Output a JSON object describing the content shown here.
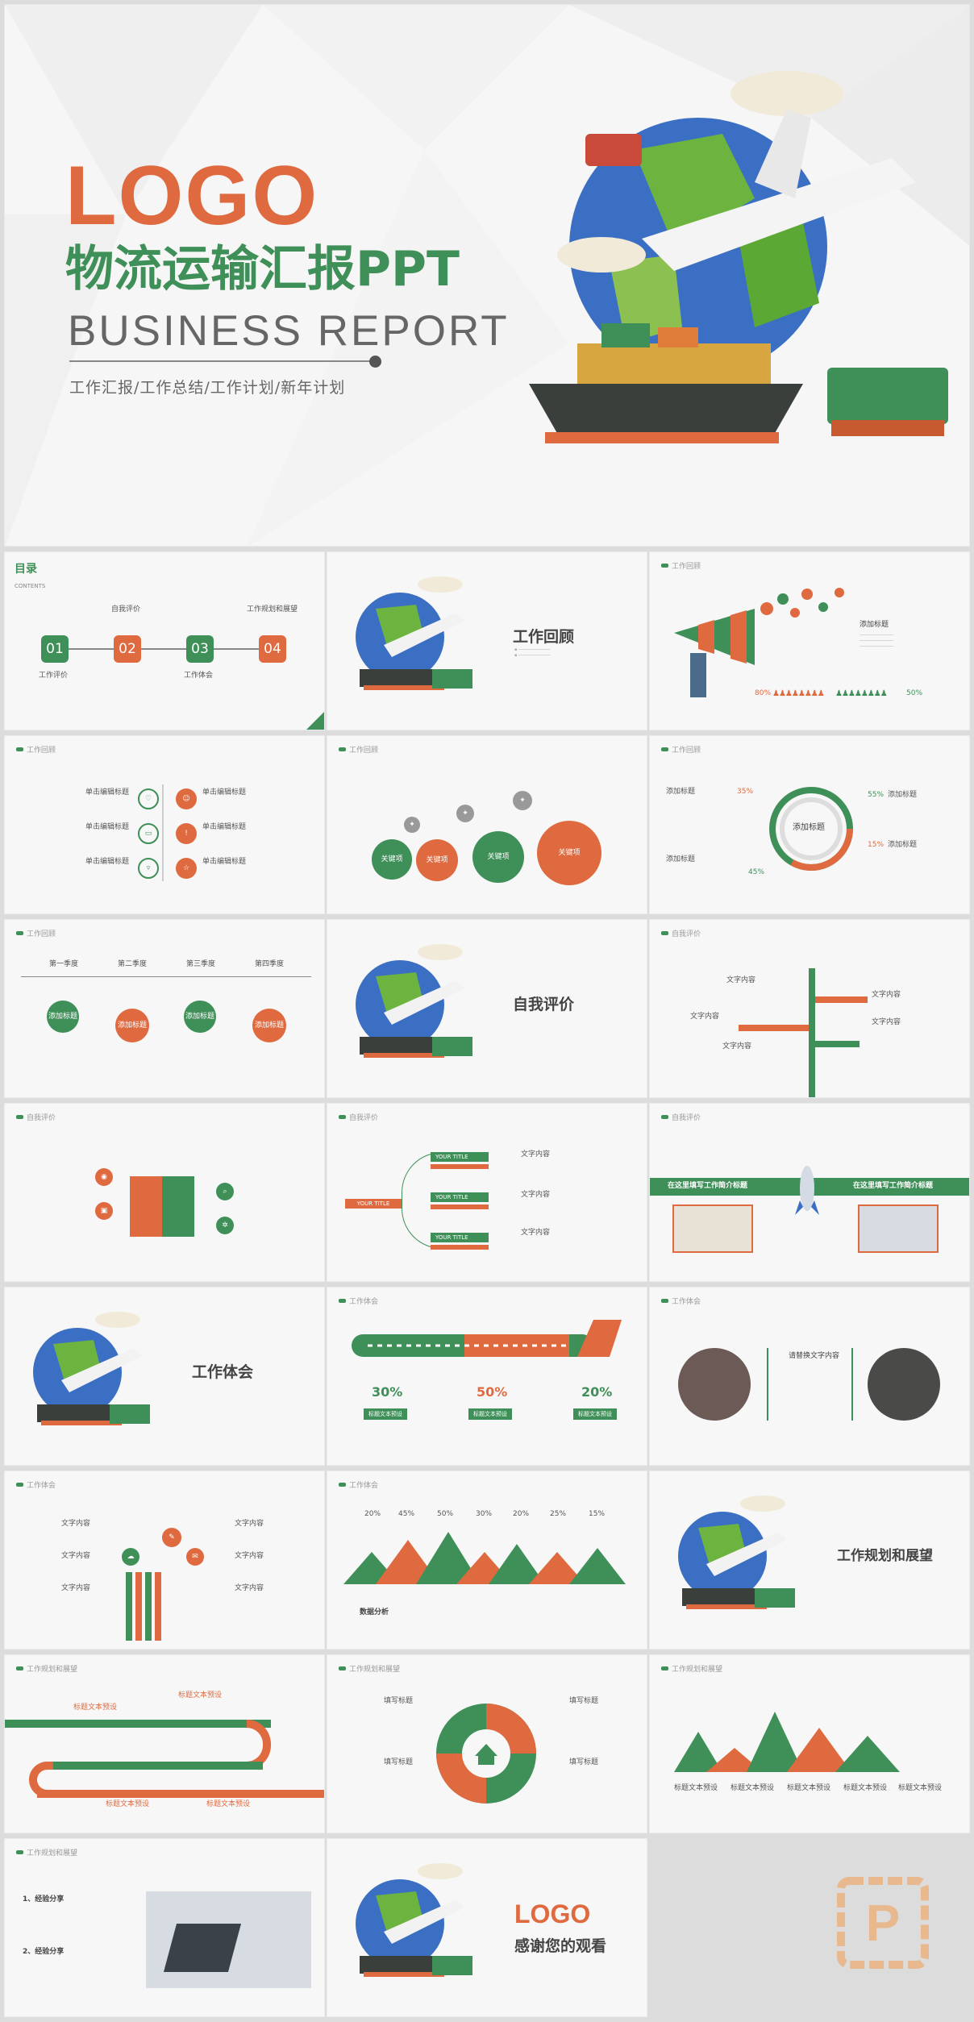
{
  "colors": {
    "green": "#3f8f58",
    "orange": "#df6a3f",
    "text": "#555555",
    "bg": "#f6f6f6"
  },
  "cover": {
    "logo": "LOGO",
    "title": "物流运输汇报PPT",
    "subtitle": "BUSINESS REPORT",
    "tags": "工作汇报/工作总结/工作计划/新年计划"
  },
  "toc": {
    "heading": "目录",
    "heading_en": "CONTENTS",
    "items": [
      {
        "num": "01",
        "label": "工作评价"
      },
      {
        "num": "02",
        "label": "自我评价"
      },
      {
        "num": "03",
        "label": "工作体会"
      },
      {
        "num": "04",
        "label": "工作规划和展望"
      }
    ]
  },
  "section_titles": {
    "s1": "工作回顾",
    "s2": "自我评价",
    "s3": "工作体会",
    "s4": "工作规划和展望"
  },
  "headers": {
    "review": "工作回顾",
    "self": "自我评价",
    "experience": "工作体会",
    "plan": "工作规划和展望"
  },
  "slide3": {
    "label": "添加标题",
    "left_pct": "80%",
    "right_pct": "50%"
  },
  "slide4": {
    "items": [
      "单击编辑标题",
      "单击编辑标题",
      "单击编辑标题",
      "单击编辑标题",
      "单击编辑标题",
      "单击编辑标题"
    ]
  },
  "slide5": {
    "circles": [
      "关键项",
      "关键项",
      "关键项",
      "关键项"
    ]
  },
  "slide6": {
    "center": "添加标题",
    "labels": [
      "添加标题",
      "添加标题",
      "添加标题",
      "添加标题"
    ],
    "pcts": [
      "35%",
      "55%",
      "15%",
      "45%"
    ]
  },
  "slide7": {
    "quarters": [
      "第一季度",
      "第二季度",
      "第三季度",
      "第四季度"
    ],
    "nodes": [
      "添加标题",
      "添加标题",
      "添加标题",
      "添加标题"
    ]
  },
  "slide9": {
    "labels": [
      "文字内容",
      "文字内容",
      "文字内容",
      "文字内容",
      "文字内容"
    ]
  },
  "slide11": {
    "main": "YOUR TITLE",
    "bars": [
      "YOUR TITLE",
      "YOUR TITLE",
      "YOUR TITLE"
    ],
    "labels": [
      "文字内容",
      "文字内容",
      "文字内容"
    ]
  },
  "slide12": {
    "left": "在这里填写工作简介标题",
    "right": "在这里填写工作简介标题"
  },
  "slide14": {
    "pcts": [
      "30%",
      "50%",
      "20%"
    ],
    "labels": [
      "标题文本预设",
      "标题文本预设",
      "标题文本预设"
    ]
  },
  "slide15": {
    "label": "请替换文字内容"
  },
  "slide16": {
    "labels": [
      "文字内容",
      "文字内容",
      "文字内容",
      "文字内容",
      "文字内容",
      "文字内容"
    ]
  },
  "slide17": {
    "pcts": [
      "20%",
      "45%",
      "50%",
      "30%",
      "20%",
      "25%",
      "15%"
    ],
    "analysis": "数据分析"
  },
  "slide19": {
    "labels": [
      "标题文本预设",
      "标题文本预设",
      "标题文本预设",
      "标题文本预设"
    ]
  },
  "slide20": {
    "labels": [
      "填写标题",
      "填写标题",
      "填写标题",
      "填写标题"
    ]
  },
  "slide21": {
    "labels": [
      "标题文本预设",
      "标题文本预设",
      "标题文本预设",
      "标题文本预设",
      "标题文本预设"
    ]
  },
  "slide22": {
    "items": [
      "1、经验分享",
      "2、经验分享"
    ]
  },
  "final": {
    "logo": "LOGO",
    "thanks": "感谢您的观看"
  }
}
